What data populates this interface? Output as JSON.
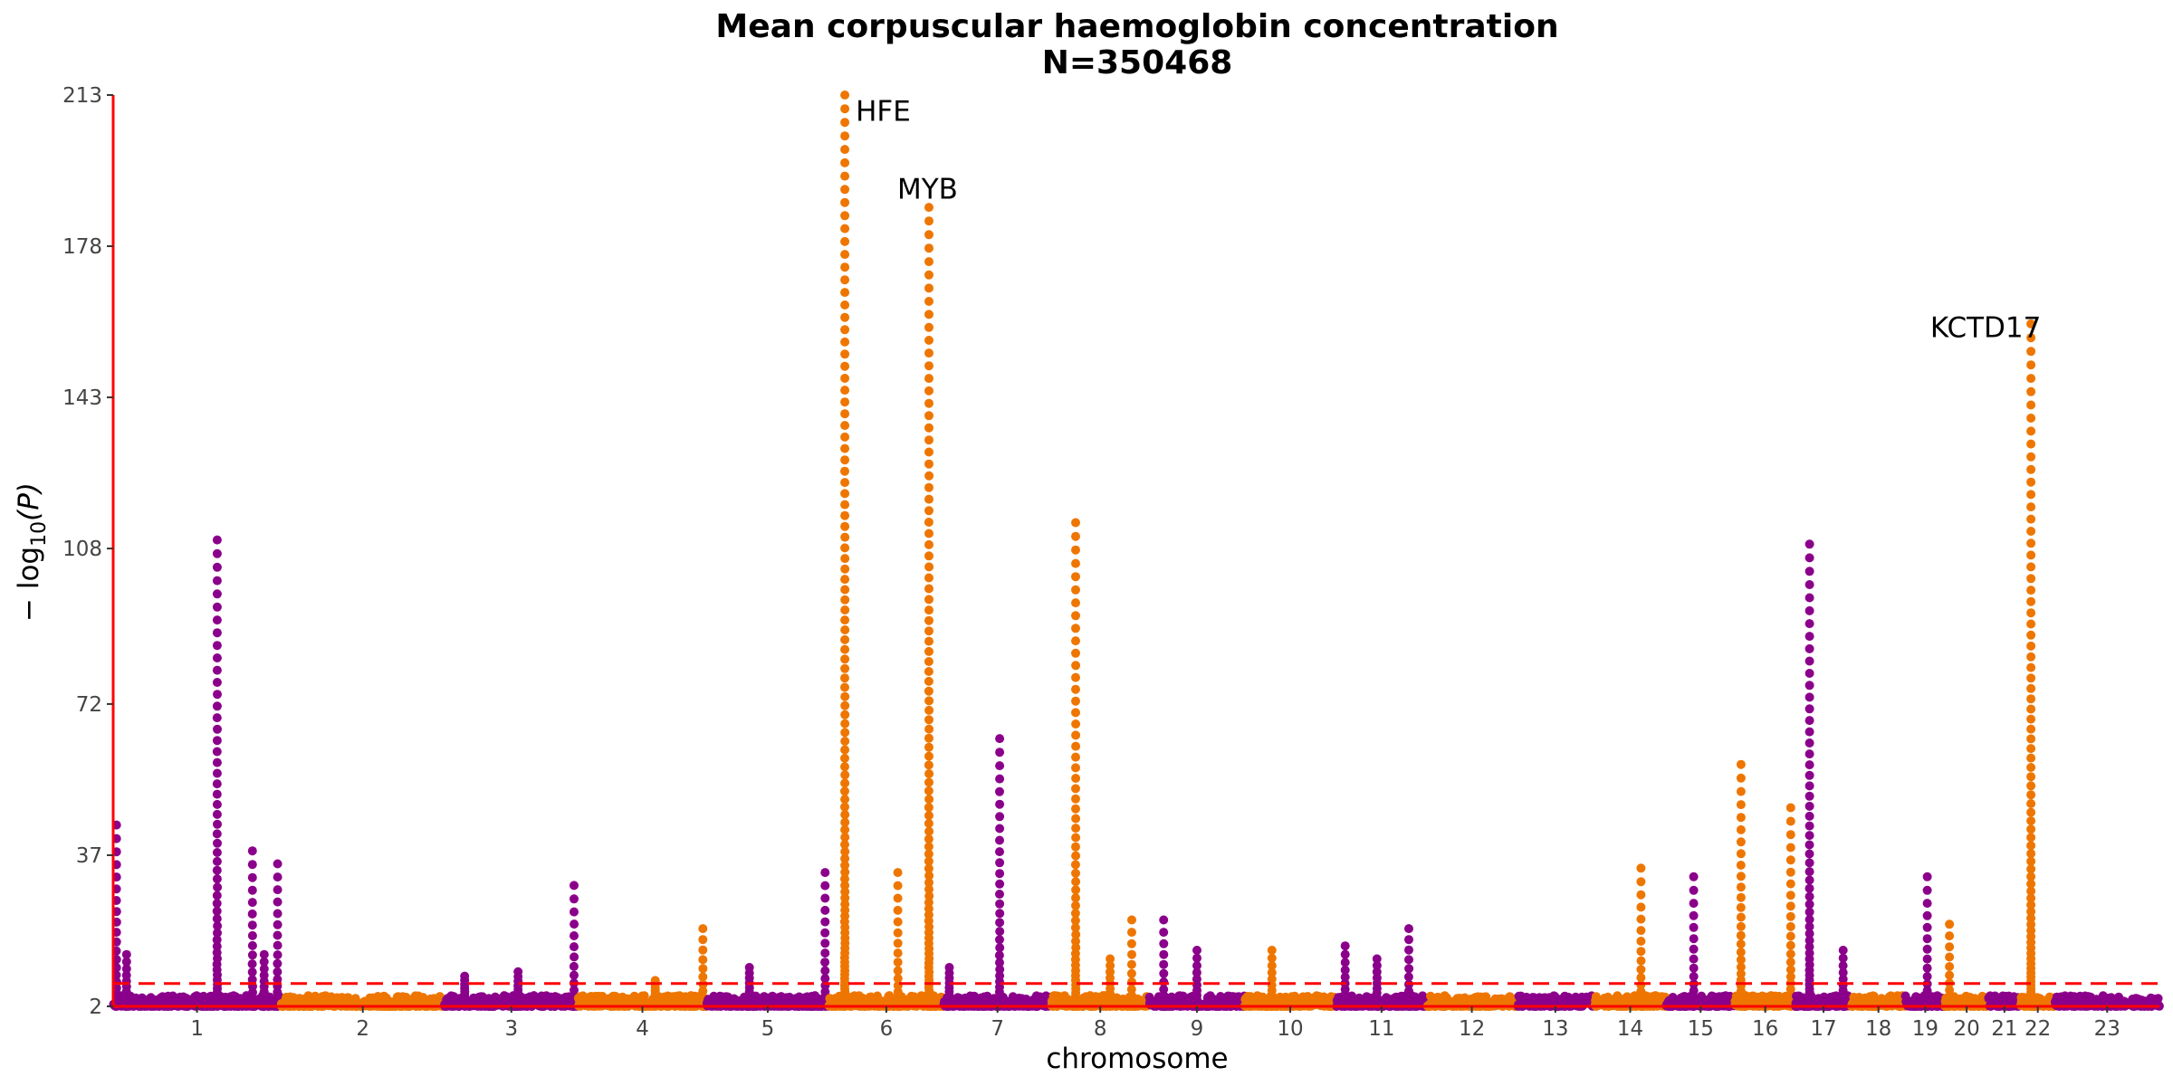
{
  "chart_data": {
    "type": "scatter",
    "title": "Mean corpuscular haemoglobin concentration",
    "subtitle": "N=350468",
    "xlabel": "chromosome",
    "ylabel_parts": {
      "pre": "− log",
      "sub": "10",
      "post": "(P)"
    },
    "ylim": [
      2,
      213
    ],
    "yticks": [
      2,
      37,
      72,
      108,
      143,
      178,
      213
    ],
    "significance_threshold": 7.3,
    "colors": {
      "odd": "#8B008B",
      "even": "#EE7600",
      "axis": "#FF0000",
      "threshold": "#FF0000"
    },
    "chromosomes": [
      {
        "label": "1",
        "length": 249
      },
      {
        "label": "2",
        "length": 243
      },
      {
        "label": "3",
        "length": 198
      },
      {
        "label": "4",
        "length": 191
      },
      {
        "label": "5",
        "length": 181
      },
      {
        "label": "6",
        "length": 171
      },
      {
        "label": "7",
        "length": 159
      },
      {
        "label": "8",
        "length": 146
      },
      {
        "label": "9",
        "length": 141
      },
      {
        "label": "10",
        "length": 136
      },
      {
        "label": "11",
        "length": 135
      },
      {
        "label": "12",
        "length": 133
      },
      {
        "label": "13",
        "length": 115
      },
      {
        "label": "14",
        "length": 107
      },
      {
        "label": "15",
        "length": 102
      },
      {
        "label": "16",
        "length": 90
      },
      {
        "label": "17",
        "length": 83
      },
      {
        "label": "18",
        "length": 80
      },
      {
        "label": "19",
        "length": 59
      },
      {
        "label": "20",
        "length": 64
      },
      {
        "label": "21",
        "length": 48
      },
      {
        "label": "22",
        "length": 51
      },
      {
        "label": "23",
        "length": 155
      }
    ],
    "peaks": [
      {
        "chr": "1",
        "pos": 0.02,
        "top": 44
      },
      {
        "chr": "1",
        "pos": 0.08,
        "top": 14
      },
      {
        "chr": "1",
        "pos": 0.62,
        "top": 110
      },
      {
        "chr": "1",
        "pos": 0.83,
        "top": 38
      },
      {
        "chr": "1",
        "pos": 0.9,
        "top": 14
      },
      {
        "chr": "1",
        "pos": 0.98,
        "top": 35
      },
      {
        "chr": "3",
        "pos": 0.15,
        "top": 9
      },
      {
        "chr": "3",
        "pos": 0.55,
        "top": 10
      },
      {
        "chr": "3",
        "pos": 0.97,
        "top": 30
      },
      {
        "chr": "4",
        "pos": 0.6,
        "top": 8
      },
      {
        "chr": "4",
        "pos": 0.97,
        "top": 20
      },
      {
        "chr": "5",
        "pos": 0.35,
        "top": 11
      },
      {
        "chr": "5",
        "pos": 0.97,
        "top": 33
      },
      {
        "chr": "6",
        "pos": 0.14,
        "top": 213
      },
      {
        "chr": "6",
        "pos": 0.6,
        "top": 33
      },
      {
        "chr": "6",
        "pos": 0.87,
        "top": 187
      },
      {
        "chr": "7",
        "pos": 0.52,
        "top": 64
      },
      {
        "chr": "7",
        "pos": 0.05,
        "top": 11
      },
      {
        "chr": "8",
        "pos": 0.25,
        "top": 114
      },
      {
        "chr": "8",
        "pos": 0.6,
        "top": 13
      },
      {
        "chr": "8",
        "pos": 0.82,
        "top": 22
      },
      {
        "chr": "9",
        "pos": 0.15,
        "top": 22
      },
      {
        "chr": "9",
        "pos": 0.5,
        "top": 15
      },
      {
        "chr": "10",
        "pos": 0.3,
        "top": 15
      },
      {
        "chr": "11",
        "pos": 0.1,
        "top": 16
      },
      {
        "chr": "11",
        "pos": 0.45,
        "top": 13
      },
      {
        "chr": "11",
        "pos": 0.8,
        "top": 20
      },
      {
        "chr": "14",
        "pos": 0.65,
        "top": 34
      },
      {
        "chr": "15",
        "pos": 0.4,
        "top": 32
      },
      {
        "chr": "16",
        "pos": 0.1,
        "top": 58
      },
      {
        "chr": "16",
        "pos": 0.92,
        "top": 48
      },
      {
        "chr": "17",
        "pos": 0.25,
        "top": 109
      },
      {
        "chr": "17",
        "pos": 0.85,
        "top": 15
      },
      {
        "chr": "19",
        "pos": 0.55,
        "top": 32
      },
      {
        "chr": "20",
        "pos": 0.1,
        "top": 21
      },
      {
        "chr": "22",
        "pos": 0.3,
        "top": 160
      }
    ],
    "annotations": [
      {
        "text": "HFE",
        "chr": "6",
        "pos": 0.14,
        "y": 207
      },
      {
        "text": "MYB",
        "chr": "6",
        "pos": 0.87,
        "y": 189
      },
      {
        "text": "KCTD17",
        "chr": "22",
        "pos": 0.3,
        "y": 157
      }
    ]
  }
}
